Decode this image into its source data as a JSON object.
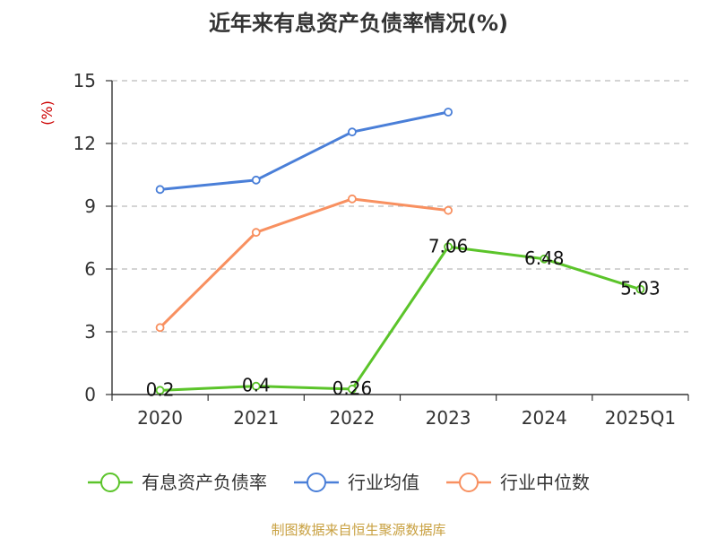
{
  "chart_data": {
    "type": "line",
    "title": "近年来有息资产负债率情况(%)",
    "y_unit": "(%)",
    "categories": [
      "2020",
      "2021",
      "2022",
      "2023",
      "2024",
      "2025Q1"
    ],
    "ylim": [
      0,
      15
    ],
    "yticks": [
      0,
      3,
      6,
      9,
      12,
      15
    ],
    "grid": true,
    "legend_position": "bottom",
    "series": [
      {
        "name": "有息资产负债率",
        "color": "#5bc42a",
        "values": [
          0.2,
          0.4,
          0.26,
          7.06,
          6.48,
          5.03
        ],
        "labels": [
          "0.2",
          "0.4",
          "0.26",
          "7.06",
          "6.48",
          "5.03"
        ],
        "show_labels": true
      },
      {
        "name": "行业均值",
        "color": "#4a7fd8",
        "values": [
          9.8,
          10.25,
          12.55,
          13.5,
          null,
          null
        ],
        "show_labels": false
      },
      {
        "name": "行业中位数",
        "color": "#f89060",
        "values": [
          3.2,
          7.75,
          9.35,
          8.8,
          null,
          null
        ],
        "show_labels": false
      }
    ]
  },
  "source_text": "制图数据来自恒生聚源数据库",
  "colors": {
    "axis": "#333333",
    "grid": "#bbbbbb",
    "unit": "#cc0000",
    "source": "#c8a040"
  }
}
